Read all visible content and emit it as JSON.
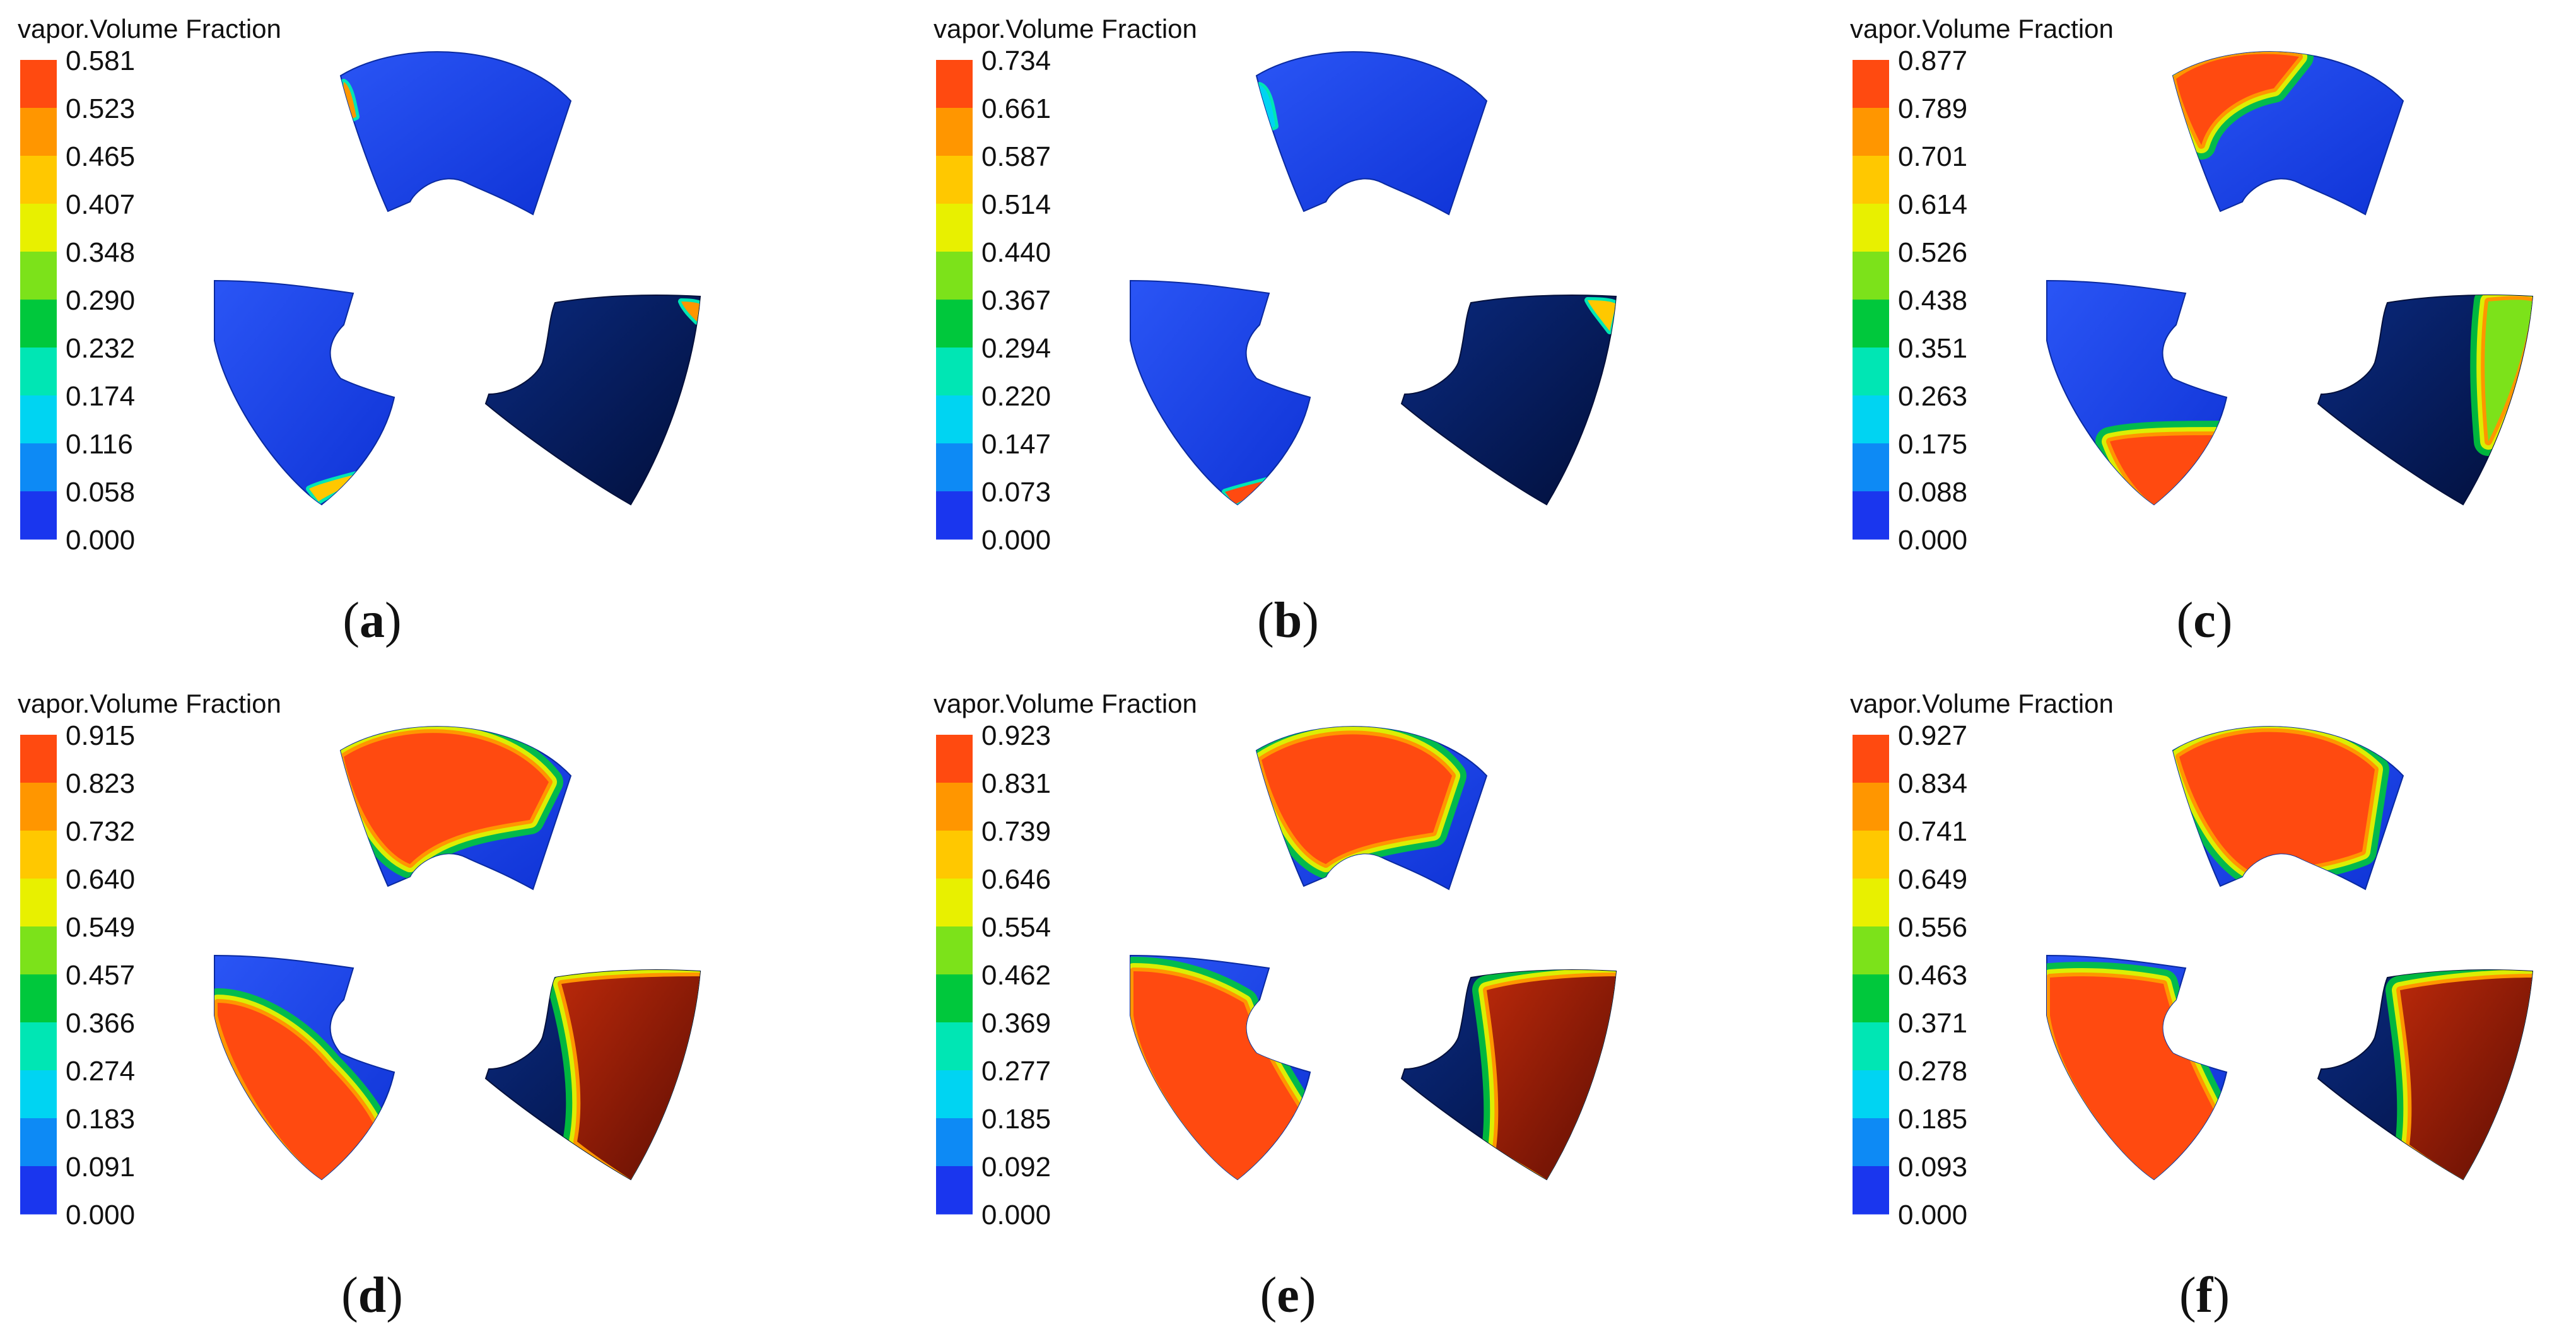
{
  "legend_title": "vapor.Volume Fraction",
  "colormap": [
    "#1a36ee",
    "#0d8af5",
    "#00d4f2",
    "#00e6b4",
    "#00c83c",
    "#7ce21a",
    "#e8f000",
    "#ffc800",
    "#ff9600",
    "#ff4a10"
  ],
  "body_colors": {
    "blue": "#1a46f0",
    "navy": "#031c57",
    "red": "#f0441a",
    "dark_red": "#8a1605"
  },
  "panels": [
    {
      "caption": "a",
      "ticks": [
        "0.581",
        "0.523",
        "0.465",
        "0.407",
        "0.348",
        "0.290",
        "0.232",
        "0.174",
        "0.116",
        "0.058",
        "0.000"
      ],
      "max_value": 0.581
    },
    {
      "caption": "b",
      "ticks": [
        "0.734",
        "0.661",
        "0.587",
        "0.514",
        "0.440",
        "0.367",
        "0.294",
        "0.220",
        "0.147",
        "0.073",
        "0.000"
      ],
      "max_value": 0.734
    },
    {
      "caption": "c",
      "ticks": [
        "0.877",
        "0.789",
        "0.701",
        "0.614",
        "0.526",
        "0.438",
        "0.351",
        "0.263",
        "0.175",
        "0.088",
        "0.000"
      ],
      "max_value": 0.877
    },
    {
      "caption": "d",
      "ticks": [
        "0.915",
        "0.823",
        "0.732",
        "0.640",
        "0.549",
        "0.457",
        "0.366",
        "0.274",
        "0.183",
        "0.091",
        "0.000"
      ],
      "max_value": 0.915
    },
    {
      "caption": "e",
      "ticks": [
        "0.923",
        "0.831",
        "0.739",
        "0.646",
        "0.554",
        "0.462",
        "0.369",
        "0.277",
        "0.185",
        "0.092",
        "0.000"
      ],
      "max_value": 0.923
    },
    {
      "caption": "f",
      "ticks": [
        "0.927",
        "0.834",
        "0.741",
        "0.649",
        "0.556",
        "0.463",
        "0.371",
        "0.278",
        "0.185",
        "0.093",
        "0.000"
      ],
      "max_value": 0.927
    }
  ]
}
